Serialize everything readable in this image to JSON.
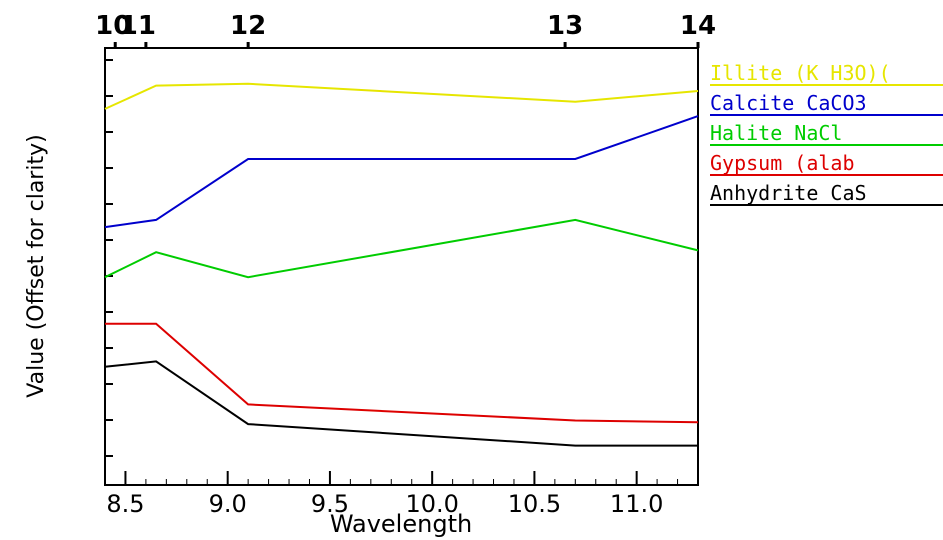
{
  "chart_data": {
    "type": "line",
    "xlabel": "Wavelength",
    "ylabel": "Value (Offset for clarity)",
    "xlim": [
      8.4,
      11.3
    ],
    "x_ticks": [
      8.5,
      9.0,
      9.5,
      10.0,
      10.5,
      11.0
    ],
    "x_tick_labels": [
      "8.5",
      "9.0",
      "9.5",
      "10.0",
      "10.5",
      "11.0"
    ],
    "top_axis": {
      "ticks": [
        {
          "label": "10",
          "x": 8.45
        },
        {
          "label": "11",
          "x": 8.6
        },
        {
          "label": "12",
          "x": 9.1
        },
        {
          "label": "13",
          "x": 10.65
        },
        {
          "label": "14",
          "x": 11.3
        }
      ]
    },
    "x": [
      8.4,
      8.65,
      9.1,
      10.7,
      11.3
    ],
    "series": [
      {
        "name": "Illite (K H3O)(",
        "color": "#e6e600",
        "values": [
          93.0,
          99.5,
          100.0,
          95.0,
          98.0
        ]
      },
      {
        "name": "Calcite CaCO3",
        "color": "#0000cc",
        "values": [
          60.0,
          62.0,
          79.0,
          79.0,
          91.0
        ]
      },
      {
        "name": "Halite NaCl",
        "color": "#00cc00",
        "values": [
          46.0,
          53.0,
          46.0,
          62.0,
          53.5
        ]
      },
      {
        "name": "Gypsum (alab",
        "color": "#dd0000",
        "values": [
          33.0,
          33.0,
          10.5,
          6.0,
          5.5
        ]
      },
      {
        "name": "Anhydrite CaS",
        "color": "#000000",
        "values": [
          21.0,
          22.5,
          5.0,
          -1.0,
          -1.0
        ]
      }
    ],
    "ylim": [
      -12,
      110
    ],
    "grid": false,
    "legend_position": "right"
  }
}
